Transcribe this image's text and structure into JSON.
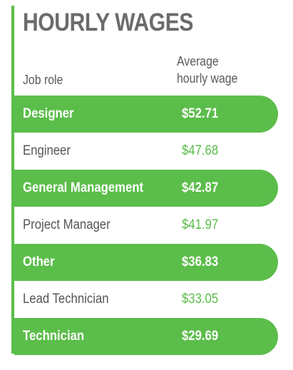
{
  "chart_data": {
    "type": "table",
    "title": "HOURLY WAGES",
    "columns": [
      "Job role",
      "Average hourly wage"
    ],
    "column_header_lines": {
      "role": "Job role",
      "wage_line1": "Average",
      "wage_line2": "hourly wage"
    },
    "rows": [
      {
        "role": "Designer",
        "wage_label": "$52.71",
        "value": 52.71
      },
      {
        "role": "Engineer",
        "wage_label": "$47.68",
        "value": 47.68
      },
      {
        "role": "General Management",
        "wage_label": "$42.87",
        "value": 42.87
      },
      {
        "role": "Project Manager",
        "wage_label": "$41.97",
        "value": 41.97
      },
      {
        "role": "Other",
        "wage_label": "$36.83",
        "value": 36.83
      },
      {
        "role": "Lead Technician",
        "wage_label": "$33.05",
        "value": 33.05
      },
      {
        "role": "Technician",
        "wage_label": "$29.69",
        "value": 29.69
      }
    ]
  },
  "colors": {
    "accent": "#5bbd4a",
    "title": "#6b6b6b",
    "text": "#555555",
    "highlight_text": "#ffffff"
  }
}
